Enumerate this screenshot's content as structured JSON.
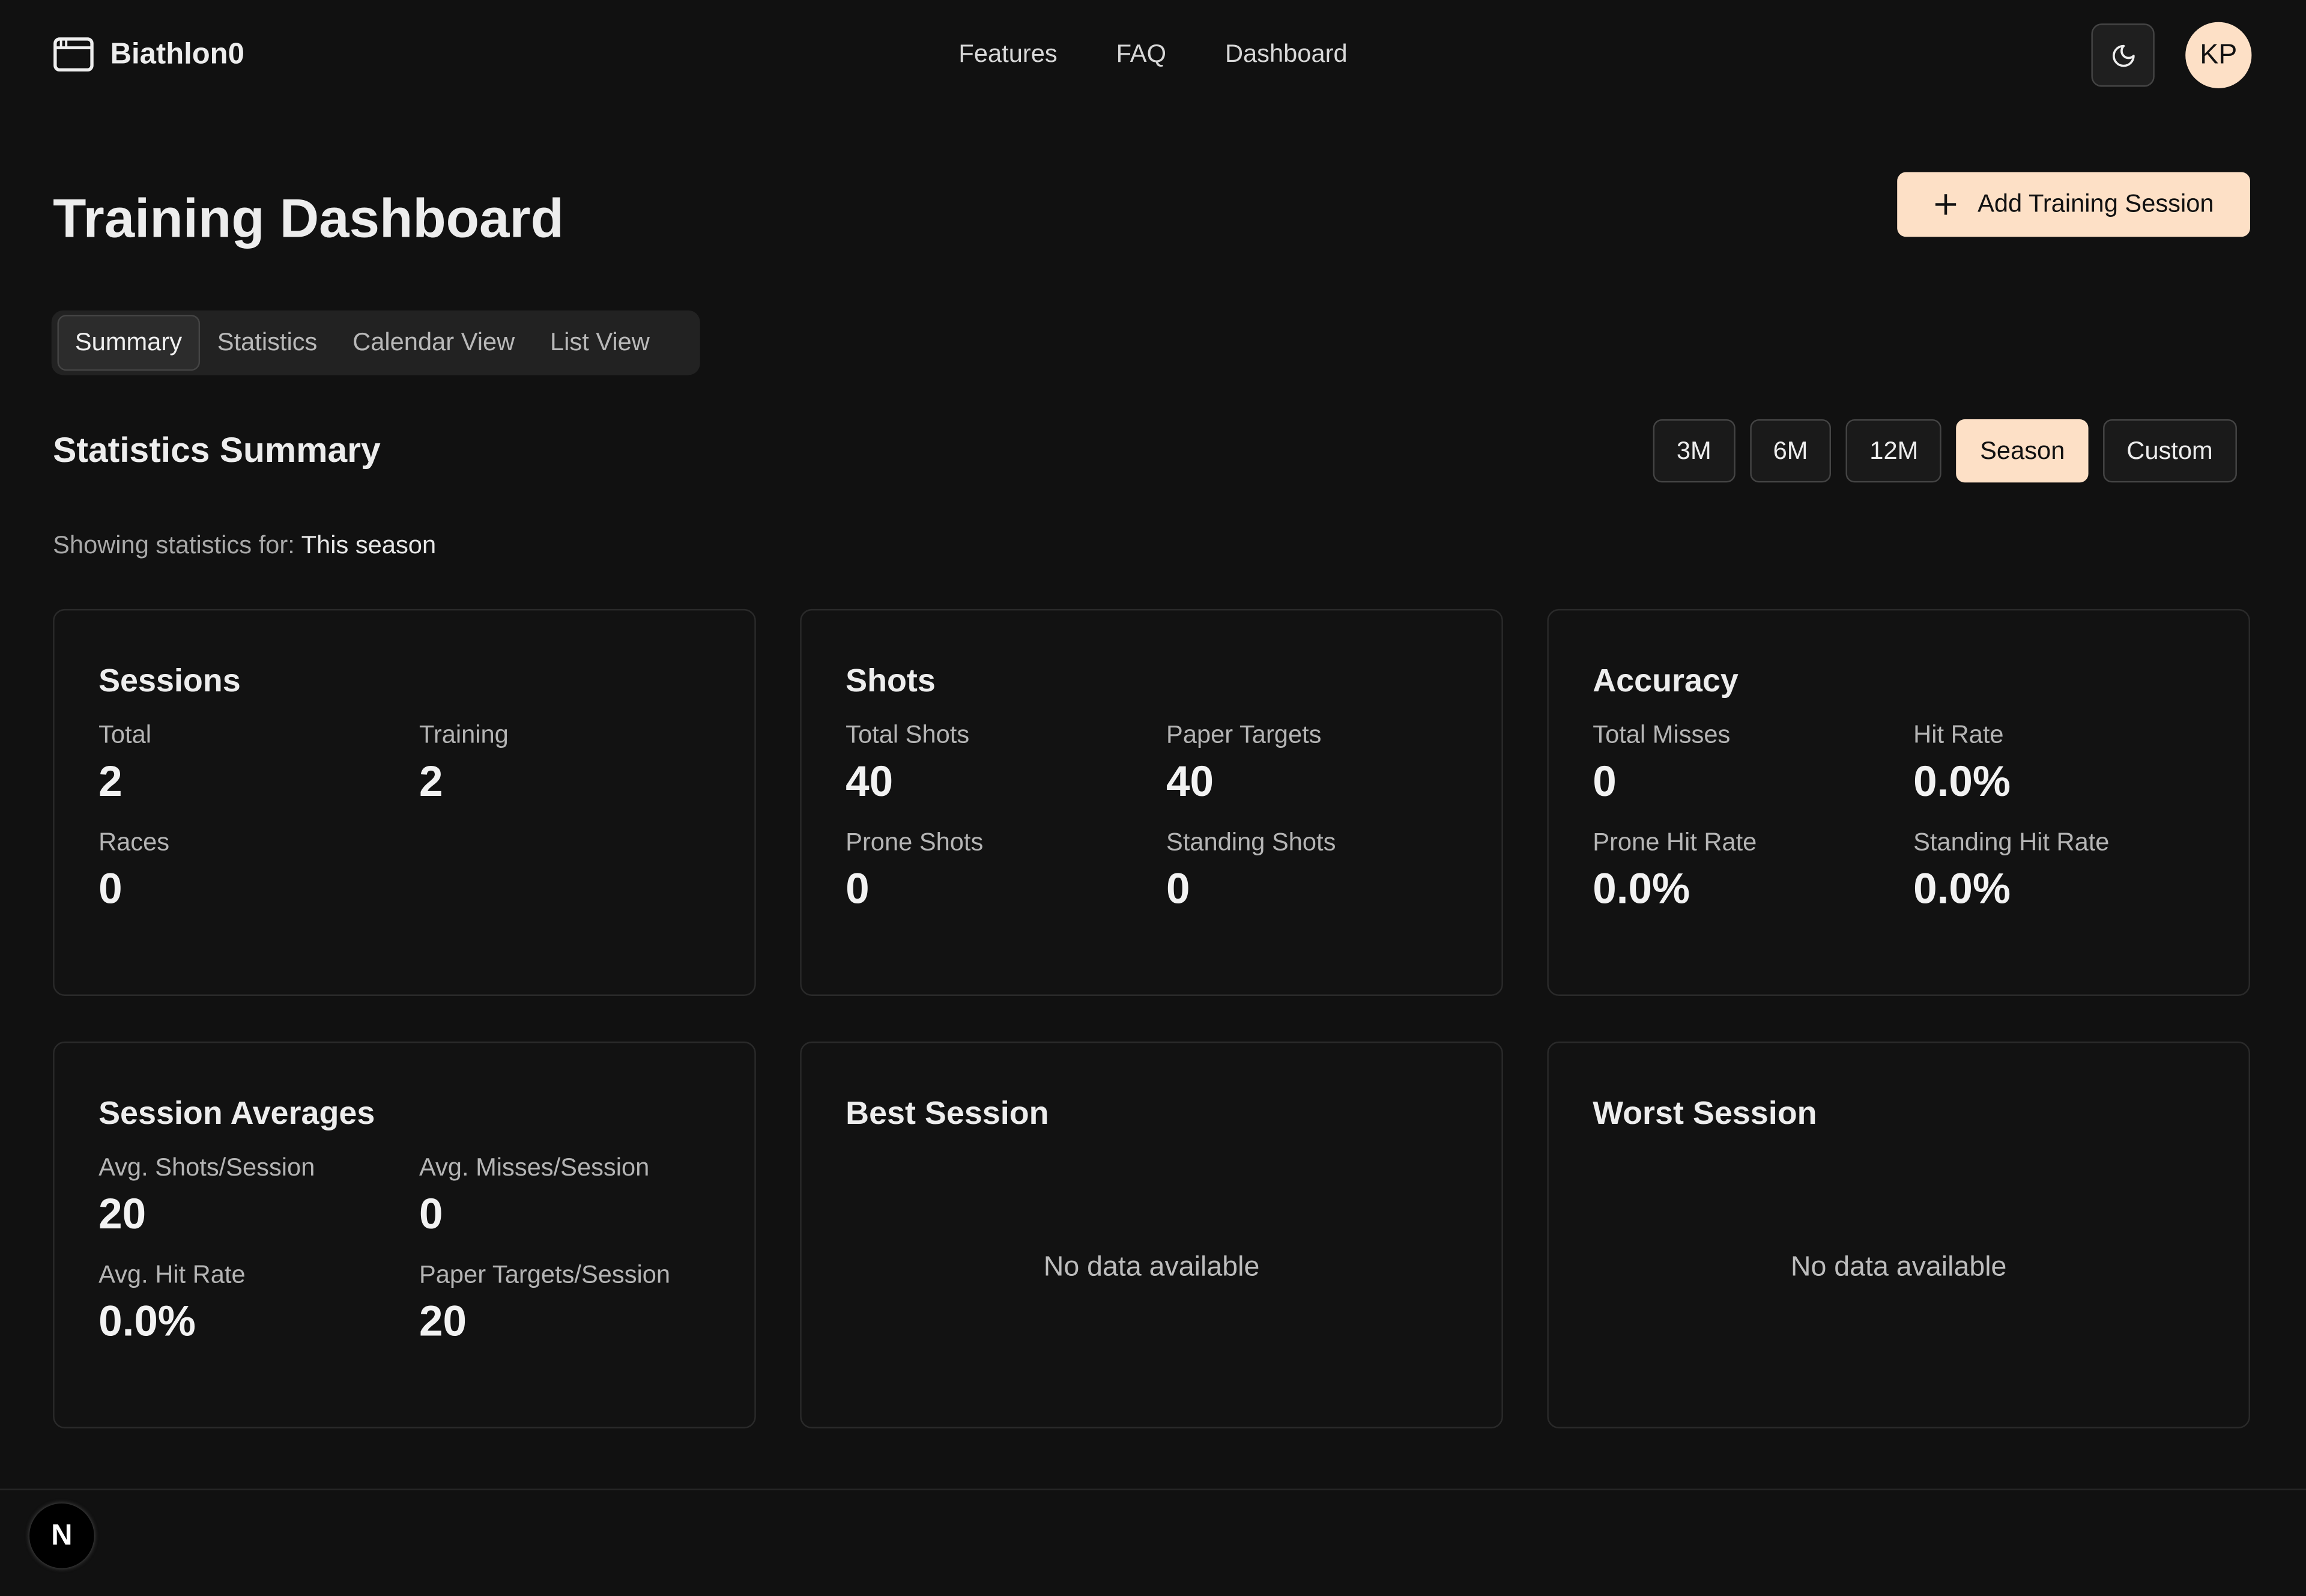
{
  "app": {
    "name": "Biathlon0",
    "logo_icon": "browser-window-icon"
  },
  "nav": {
    "links": [
      "Features",
      "FAQ",
      "Dashboard"
    ]
  },
  "header": {
    "theme_icon": "moon-icon",
    "avatar_initials": "KP"
  },
  "page": {
    "title": "Training Dashboard",
    "add_button": "Add Training Session",
    "add_icon": "plus-icon"
  },
  "tabs": [
    {
      "label": "Summary",
      "active": true
    },
    {
      "label": "Statistics"
    },
    {
      "label": "Calendar View"
    },
    {
      "label": "List View"
    }
  ],
  "summary": {
    "title": "Statistics Summary",
    "ranges": [
      {
        "label": "3M"
      },
      {
        "label": "6M"
      },
      {
        "label": "12M"
      },
      {
        "label": "Season",
        "active": true
      },
      {
        "label": "Custom"
      }
    ],
    "showing_prefix": "Showing statistics for:",
    "showing_value": "This season"
  },
  "cards": {
    "sessions": {
      "title": "Sessions",
      "items": [
        {
          "label": "Total",
          "value": "2"
        },
        {
          "label": "Training",
          "value": "2"
        },
        {
          "label": "Races",
          "value": "0"
        }
      ]
    },
    "shots": {
      "title": "Shots",
      "items": [
        {
          "label": "Total Shots",
          "value": "40"
        },
        {
          "label": "Paper Targets",
          "value": "40"
        },
        {
          "label": "Prone Shots",
          "value": "0"
        },
        {
          "label": "Standing Shots",
          "value": "0"
        }
      ]
    },
    "accuracy": {
      "title": "Accuracy",
      "items": [
        {
          "label": "Total Misses",
          "value": "0"
        },
        {
          "label": "Hit Rate",
          "value": "0.0%"
        },
        {
          "label": "Prone Hit Rate",
          "value": "0.0%"
        },
        {
          "label": "Standing Hit Rate",
          "value": "0.0%"
        }
      ]
    },
    "averages": {
      "title": "Session Averages",
      "items": [
        {
          "label": "Avg. Shots/Session",
          "value": "20"
        },
        {
          "label": "Avg. Misses/Session",
          "value": "0"
        },
        {
          "label": "Avg. Hit Rate",
          "value": "0.0%"
        },
        {
          "label": "Paper Targets/Session",
          "value": "20"
        }
      ]
    },
    "best": {
      "title": "Best Session",
      "empty": "No data available"
    },
    "worst": {
      "title": "Worst Session",
      "empty": "No data available"
    }
  },
  "footer": {
    "badge": "N"
  },
  "colors": {
    "background": "#111111",
    "accent": "#fde0c6",
    "card_border": "#2a2a2a"
  }
}
